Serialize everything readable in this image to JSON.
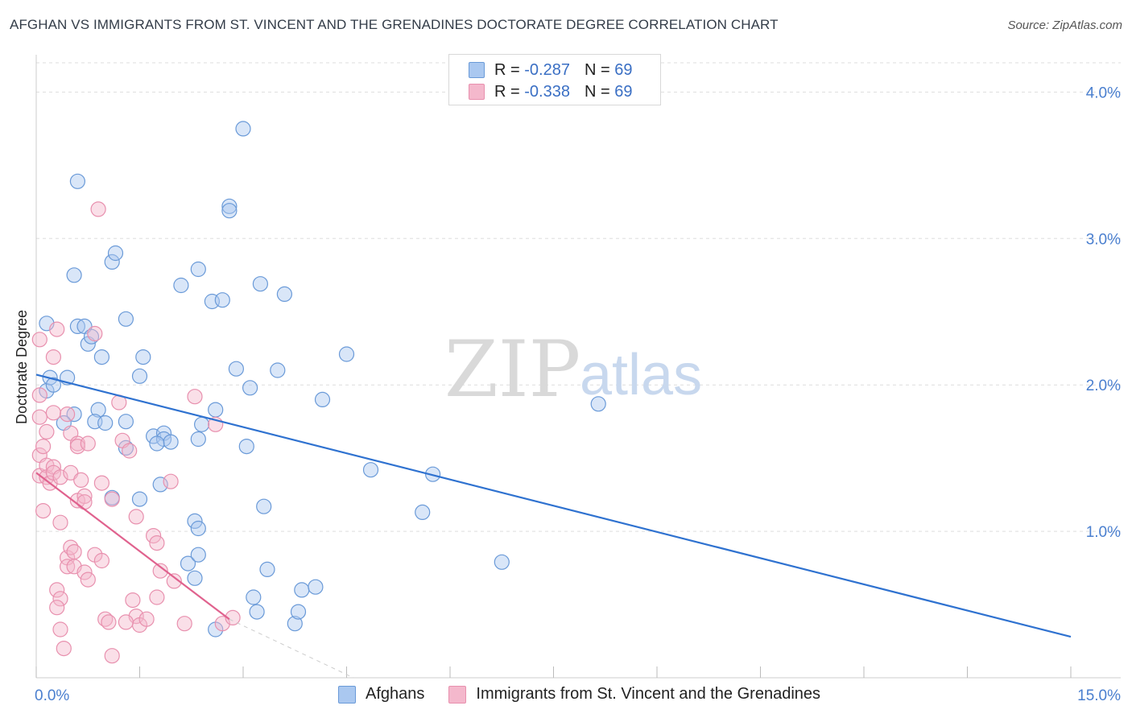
{
  "title": "AFGHAN VS IMMIGRANTS FROM ST. VINCENT AND THE GRENADINES DOCTORATE DEGREE CORRELATION CHART",
  "source": "Source: ZipAtlas.com",
  "watermark": {
    "zip": "ZIP",
    "atlas": "atlas"
  },
  "legend": {
    "rows": [
      {
        "r_label": "R =",
        "r_value": "-0.287",
        "n_label": "N =",
        "n_value": "69"
      },
      {
        "r_label": "R =",
        "r_value": "-0.338",
        "n_label": "N =",
        "n_value": "69"
      }
    ]
  },
  "bottom_legend": {
    "afghans": "Afghans",
    "immigrants": "Immigrants from St. Vincent and the Grenadines"
  },
  "colors": {
    "blue_fill": "#aac8f0",
    "blue_stroke": "#6a9ad8",
    "blue_line": "#2f72d0",
    "pink_fill": "#f4b8cc",
    "pink_stroke": "#e890ae",
    "pink_line": "#e0628e",
    "grid": "#dddddd",
    "tick_text": "#4a7fcf"
  },
  "chart_data": {
    "type": "scatter",
    "title": "AFGHAN VS IMMIGRANTS FROM ST. VINCENT AND THE GRENADINES DOCTORATE DEGREE CORRELATION CHART",
    "xlabel": "",
    "ylabel": "Doctorate Degree",
    "xlim": [
      0,
      15
    ],
    "ylim": [
      0,
      4.2
    ],
    "x_tick_labels": [
      "0.0%",
      "15.0%"
    ],
    "y_ticks": [
      1.0,
      2.0,
      3.0,
      4.0
    ],
    "y_tick_labels": [
      "1.0%",
      "2.0%",
      "3.0%",
      "4.0%"
    ],
    "grid": true,
    "series": [
      {
        "name": "Afghans",
        "r": -0.287,
        "n": 69,
        "trend": {
          "x": [
            0.0,
            15.0
          ],
          "y": [
            2.07,
            0.28
          ]
        },
        "points": [
          [
            0.15,
            2.42
          ],
          [
            0.15,
            1.96
          ],
          [
            0.2,
            2.05
          ],
          [
            0.25,
            2.0
          ],
          [
            0.6,
            2.4
          ],
          [
            0.45,
            2.05
          ],
          [
            0.55,
            1.8
          ],
          [
            0.4,
            1.74
          ],
          [
            0.55,
            2.75
          ],
          [
            0.6,
            3.39
          ],
          [
            0.7,
            2.4
          ],
          [
            0.75,
            2.28
          ],
          [
            0.8,
            2.33
          ],
          [
            0.95,
            2.19
          ],
          [
            0.9,
            1.83
          ],
          [
            0.85,
            1.75
          ],
          [
            1.0,
            1.74
          ],
          [
            1.1,
            2.84
          ],
          [
            1.15,
            2.9
          ],
          [
            1.3,
            2.45
          ],
          [
            1.55,
            2.19
          ],
          [
            1.5,
            2.06
          ],
          [
            1.3,
            1.75
          ],
          [
            1.7,
            1.65
          ],
          [
            1.85,
            1.67
          ],
          [
            1.85,
            1.63
          ],
          [
            1.95,
            1.61
          ],
          [
            1.75,
            1.6
          ],
          [
            1.3,
            1.57
          ],
          [
            1.1,
            1.23
          ],
          [
            1.5,
            1.22
          ],
          [
            1.8,
            1.32
          ],
          [
            2.1,
            2.68
          ],
          [
            2.35,
            1.63
          ],
          [
            2.3,
            1.07
          ],
          [
            2.35,
            1.02
          ],
          [
            2.3,
            0.68
          ],
          [
            2.2,
            0.78
          ],
          [
            2.35,
            0.84
          ],
          [
            2.4,
            1.73
          ],
          [
            2.35,
            2.79
          ],
          [
            2.55,
            2.57
          ],
          [
            2.6,
            1.83
          ],
          [
            2.7,
            2.58
          ],
          [
            2.8,
            3.22
          ],
          [
            2.8,
            3.19
          ],
          [
            3.0,
            3.75
          ],
          [
            2.9,
            2.11
          ],
          [
            3.1,
            1.98
          ],
          [
            3.05,
            1.58
          ],
          [
            3.15,
            0.55
          ],
          [
            3.2,
            0.45
          ],
          [
            3.25,
            2.69
          ],
          [
            3.3,
            1.17
          ],
          [
            3.35,
            0.74
          ],
          [
            3.5,
            2.1
          ],
          [
            3.6,
            2.62
          ],
          [
            3.75,
            0.37
          ],
          [
            3.8,
            0.45
          ],
          [
            3.85,
            0.6
          ],
          [
            4.05,
            0.62
          ],
          [
            4.15,
            1.9
          ],
          [
            4.5,
            2.21
          ],
          [
            4.85,
            1.42
          ],
          [
            5.6,
            1.13
          ],
          [
            5.75,
            1.39
          ],
          [
            6.75,
            0.79
          ],
          [
            8.15,
            1.87
          ],
          [
            2.6,
            0.33
          ]
        ]
      },
      {
        "name": "Immigrants from St. Vincent and the Grenadines",
        "r": -0.338,
        "n": 69,
        "trend": {
          "x": [
            0.0,
            2.8
          ],
          "y": [
            1.4,
            0.4
          ]
        },
        "trend_extension": {
          "x": [
            2.8,
            4.6
          ],
          "y": [
            0.4,
            0.0
          ]
        },
        "points": [
          [
            0.05,
            2.31
          ],
          [
            0.05,
            1.93
          ],
          [
            0.05,
            1.78
          ],
          [
            0.05,
            1.52
          ],
          [
            0.05,
            1.38
          ],
          [
            0.1,
            1.58
          ],
          [
            0.15,
            1.68
          ],
          [
            0.1,
            1.14
          ],
          [
            0.15,
            1.45
          ],
          [
            0.15,
            1.37
          ],
          [
            0.2,
            1.33
          ],
          [
            0.25,
            1.44
          ],
          [
            0.25,
            2.19
          ],
          [
            0.25,
            1.81
          ],
          [
            0.25,
            1.4
          ],
          [
            0.35,
            1.37
          ],
          [
            0.35,
            1.06
          ],
          [
            0.3,
            0.6
          ],
          [
            0.35,
            0.54
          ],
          [
            0.3,
            0.48
          ],
          [
            0.35,
            0.33
          ],
          [
            0.4,
            0.2
          ],
          [
            0.45,
            1.8
          ],
          [
            0.5,
            1.4
          ],
          [
            0.5,
            1.67
          ],
          [
            0.45,
            0.82
          ],
          [
            0.45,
            0.76
          ],
          [
            0.5,
            0.89
          ],
          [
            0.55,
            0.86
          ],
          [
            0.55,
            0.76
          ],
          [
            0.6,
            1.6
          ],
          [
            0.6,
            1.58
          ],
          [
            0.65,
            1.35
          ],
          [
            0.6,
            1.21
          ],
          [
            0.7,
            1.24
          ],
          [
            0.75,
            1.6
          ],
          [
            0.7,
            1.2
          ],
          [
            0.7,
            0.72
          ],
          [
            0.75,
            0.67
          ],
          [
            0.85,
            2.35
          ],
          [
            0.9,
            3.2
          ],
          [
            0.95,
            1.33
          ],
          [
            0.85,
            0.84
          ],
          [
            0.95,
            0.8
          ],
          [
            1.0,
            0.4
          ],
          [
            1.05,
            0.38
          ],
          [
            1.1,
            1.22
          ],
          [
            1.1,
            0.15
          ],
          [
            1.25,
            1.62
          ],
          [
            1.35,
            1.55
          ],
          [
            1.45,
            1.1
          ],
          [
            1.4,
            0.53
          ],
          [
            1.45,
            0.42
          ],
          [
            1.5,
            0.36
          ],
          [
            1.6,
            0.4
          ],
          [
            1.7,
            0.97
          ],
          [
            1.75,
            0.92
          ],
          [
            1.8,
            0.73
          ],
          [
            1.75,
            0.55
          ],
          [
            1.95,
            1.34
          ],
          [
            2.0,
            0.66
          ],
          [
            2.15,
            0.37
          ],
          [
            2.3,
            1.92
          ],
          [
            2.6,
            1.73
          ],
          [
            2.7,
            0.37
          ],
          [
            2.85,
            0.41
          ],
          [
            1.2,
            1.88
          ],
          [
            0.3,
            2.38
          ],
          [
            1.3,
            0.38
          ]
        ]
      }
    ]
  }
}
